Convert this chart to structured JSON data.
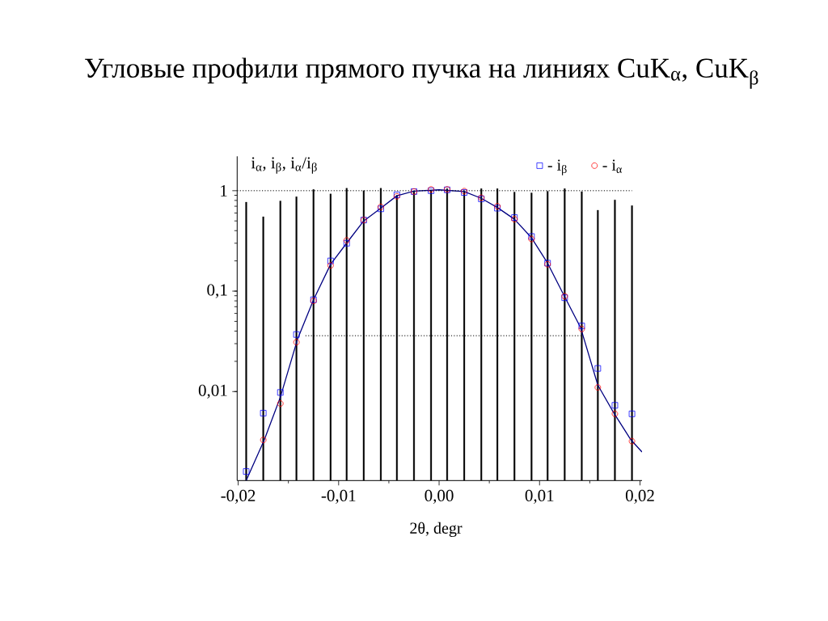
{
  "chart_data": {
    "type": "scatter",
    "title": "Угловые профили прямого пучка на линиях CuK$_{α}$, CuK$_{β}$",
    "xlabel": "2θ, degr",
    "ylabel": "i$_{α}$, i$_{β}$,  i$_{α}$/i$_{β}$",
    "x": [
      -0.0192,
      -0.0175,
      -0.0158,
      -0.0142,
      -0.0125,
      -0.0108,
      -0.0092,
      -0.0075,
      -0.0058,
      -0.0042,
      -0.0025,
      -0.0008,
      0.0008,
      0.0025,
      0.0042,
      0.0058,
      0.0075,
      0.0092,
      0.0108,
      0.0125,
      0.0142,
      0.0158,
      0.0175,
      0.0192
    ],
    "series": [
      {
        "type": "bar",
        "color": "#000000",
        "values": [
          0.77,
          0.55,
          0.79,
          0.87,
          1.03,
          0.93,
          1.06,
          1.0,
          1.06,
          0.9,
          0.99,
          1.0,
          1.05,
          1.0,
          1.05,
          1.05,
          0.97,
          0.95,
          0.99,
          1.05,
          0.98,
          0.64,
          0.81,
          0.71
        ]
      },
      {
        "type": "line",
        "color": "#000080",
        "marker": "none",
        "line_style": "solid",
        "x": [
          -0.0192,
          -0.0174,
          -0.0158,
          -0.0141,
          -0.0125,
          -0.0108,
          -0.0091,
          -0.0075,
          -0.0058,
          -0.0042,
          -0.0025,
          0.0,
          0.0025,
          0.0042,
          0.0058,
          0.0075,
          0.0092,
          0.0108,
          0.0125,
          0.0141,
          0.0158,
          0.0174,
          0.0191,
          0.0202
        ],
        "values": [
          0.0013,
          0.0033,
          0.0088,
          0.033,
          0.082,
          0.185,
          0.31,
          0.5,
          0.67,
          0.89,
          0.99,
          1.02,
          0.98,
          0.84,
          0.68,
          0.52,
          0.34,
          0.19,
          0.088,
          0.043,
          0.0116,
          0.0061,
          0.0033,
          0.0025
        ]
      },
      {
        "type": "line",
        "color": "#000000",
        "marker": "none",
        "line_style": "dotted",
        "x": [
          -0.0201,
          0.0192
        ],
        "values": [
          1,
          1
        ]
      },
      {
        "type": "line",
        "color": "#000000",
        "marker": "none",
        "line_style": "dotted",
        "x": [
          -0.0133,
          0.0141
        ],
        "values": [
          0.036,
          0.036
        ]
      },
      {
        "name": "- i$_{β}$",
        "color": "#0000ff",
        "marker": "square",
        "values": [
          0.0016,
          0.0061,
          0.0098,
          0.037,
          0.082,
          0.2,
          0.3,
          0.51,
          0.66,
          0.91,
          0.98,
          1.0,
          1.02,
          0.96,
          0.83,
          0.67,
          0.54,
          0.35,
          0.19,
          0.086,
          0.045,
          0.017,
          0.0073,
          0.006
        ]
      },
      {
        "name": "- i$_{α}$",
        "color": "#ff0000",
        "marker": "circle",
        "values": [
          null,
          0.0033,
          0.0076,
          0.031,
          0.08,
          0.18,
          0.32,
          0.51,
          0.69,
          0.88,
          0.98,
          1.03,
          1.03,
          0.99,
          0.85,
          0.7,
          0.52,
          0.33,
          0.185,
          0.089,
          0.042,
          0.011,
          0.006,
          0.0032
        ]
      }
    ],
    "xlim": [
      -0.0201,
      0.0202
    ],
    "ylim": [
      0.0013,
      2.2
    ],
    "xticks": [
      {
        "value": -0.02,
        "label": "-0,02"
      },
      {
        "value": -0.01,
        "label": "-0,01"
      },
      {
        "value": 0,
        "label": "0,00"
      },
      {
        "value": 0.01,
        "label": "0,01"
      },
      {
        "value": 0.02,
        "label": "0,02"
      }
    ],
    "yticks": [
      {
        "value": 0.01,
        "label": "0,01"
      },
      {
        "value": 0.1,
        "label": "0,1"
      },
      1
    ],
    "log": "y",
    "legend": "top right"
  }
}
